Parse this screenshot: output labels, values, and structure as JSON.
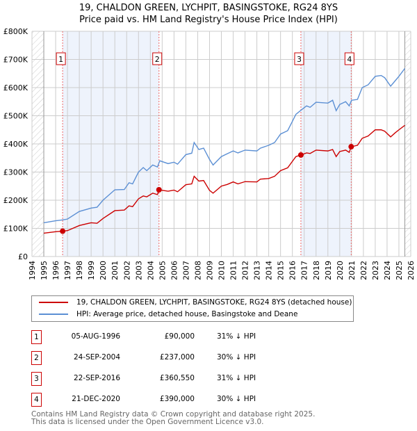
{
  "chart_data": {
    "type": "line",
    "title": "19, CHALDON GREEN, LYCHPIT, BASINGSTOKE, RG24 8YS",
    "subtitle": "Price paid vs. HM Land Registry's House Price Index (HPI)",
    "xlim": [
      1994,
      2026
    ],
    "ylim": [
      0,
      800000
    ],
    "x_ticks": [
      "1994",
      "1995",
      "1996",
      "1997",
      "1998",
      "1999",
      "2000",
      "2001",
      "2002",
      "2003",
      "2004",
      "2005",
      "2006",
      "2007",
      "2008",
      "2009",
      "2010",
      "2011",
      "2012",
      "2013",
      "2014",
      "2015",
      "2016",
      "2017",
      "2018",
      "2019",
      "2020",
      "2021",
      "2022",
      "2023",
      "2024",
      "2025",
      "2026"
    ],
    "y_ticks": [
      {
        "v": 0,
        "label": "£0"
      },
      {
        "v": 100000,
        "label": "£100K"
      },
      {
        "v": 200000,
        "label": "£200K"
      },
      {
        "v": 300000,
        "label": "£300K"
      },
      {
        "v": 400000,
        "label": "£400K"
      },
      {
        "v": 500000,
        "label": "£500K"
      },
      {
        "v": 600000,
        "label": "£600K"
      },
      {
        "v": 700000,
        "label": "£700K"
      },
      {
        "v": 800000,
        "label": "£800K"
      }
    ],
    "grid": true,
    "series": [
      {
        "name": "19, CHALDON GREEN, LYCHPIT, BASINGSTOKE, RG24 8YS (detached house)",
        "color": "#cc0000",
        "x": [
          1995,
          1996,
          1996.6,
          1997,
          1998,
          1999,
          1999.5,
          2000,
          2001,
          2001.8,
          2002.2,
          2002.5,
          2003,
          2003.4,
          2003.7,
          2004.2,
          2004.6,
          2004.73,
          2005.5,
          2006,
          2006.3,
          2007,
          2007.5,
          2007.7,
          2008.1,
          2008.5,
          2009,
          2009.3,
          2010,
          2010.5,
          2011,
          2011.4,
          2012,
          2013,
          2013.3,
          2014,
          2014.5,
          2015,
          2015.6,
          2016,
          2016.3,
          2016.72,
          2017.2,
          2017.5,
          2018,
          2019,
          2019.4,
          2019.7,
          2020,
          2020.5,
          2020.8,
          2020.97,
          2021.5,
          2021.9,
          2022.4,
          2023,
          2023.5,
          2023.8,
          2024.3,
          2024.7,
          2025,
          2025.5
        ],
        "y": [
          83000,
          88000,
          90000,
          92000,
          110000,
          120000,
          118000,
          135000,
          163000,
          165000,
          180000,
          177000,
          205000,
          215000,
          212000,
          225000,
          220000,
          237000,
          232000,
          236000,
          230000,
          255000,
          258000,
          285000,
          268000,
          270000,
          235000,
          225000,
          250000,
          256000,
          265000,
          258000,
          266000,
          265000,
          275000,
          277000,
          285000,
          305000,
          315000,
          338000,
          355000,
          360550,
          368000,
          366000,
          378000,
          375000,
          380000,
          355000,
          373000,
          378000,
          370000,
          390000,
          395000,
          420000,
          428000,
          450000,
          450000,
          445000,
          425000,
          440000,
          450000,
          466000
        ]
      },
      {
        "name": "HPI: Average price, detached house, Basingstoke and Deane",
        "color": "#5b8fd4",
        "x": [
          1995,
          1996,
          1996.6,
          1997,
          1998,
          1999,
          1999.5,
          2000,
          2001,
          2001.8,
          2002.2,
          2002.5,
          2003,
          2003.4,
          2003.7,
          2004.2,
          2004.6,
          2004.8,
          2005.5,
          2006,
          2006.3,
          2007,
          2007.5,
          2007.7,
          2008.1,
          2008.5,
          2009,
          2009.3,
          2010,
          2010.5,
          2011,
          2011.4,
          2012,
          2013,
          2013.3,
          2014,
          2014.5,
          2015,
          2015.6,
          2016,
          2016.3,
          2016.8,
          2017.2,
          2017.5,
          2018,
          2019,
          2019.4,
          2019.7,
          2020,
          2020.5,
          2020.8,
          2021,
          2021.5,
          2021.9,
          2022.4,
          2023,
          2023.5,
          2023.8,
          2024.3,
          2024.7,
          2025,
          2025.5
        ],
        "y": [
          120000,
          127000,
          130000,
          133000,
          160000,
          172000,
          175000,
          200000,
          237000,
          238000,
          262000,
          258000,
          300000,
          316000,
          305000,
          325000,
          318000,
          340000,
          330000,
          335000,
          328000,
          362000,
          367000,
          405000,
          380000,
          385000,
          345000,
          325000,
          355000,
          365000,
          375000,
          368000,
          378000,
          375000,
          385000,
          395000,
          405000,
          435000,
          447000,
          480000,
          505000,
          522000,
          535000,
          530000,
          548000,
          545000,
          555000,
          518000,
          540000,
          550000,
          535000,
          555000,
          558000,
          600000,
          610000,
          640000,
          643000,
          635000,
          605000,
          625000,
          640000,
          668000
        ]
      }
    ],
    "sales": [
      {
        "n": "1",
        "x": 1996.59,
        "price": 90000,
        "date": "05-AUG-1996",
        "price_label": "£90,000",
        "hpi": "31% ↓ HPI"
      },
      {
        "n": "2",
        "x": 2004.73,
        "price": 237000,
        "date": "24-SEP-2004",
        "price_label": "£237,000",
        "hpi": "30% ↓ HPI"
      },
      {
        "n": "3",
        "x": 2016.72,
        "price": 360550,
        "date": "22-SEP-2016",
        "price_label": "£360,550",
        "hpi": "31% ↓ HPI"
      },
      {
        "n": "4",
        "x": 2020.97,
        "price": 390000,
        "date": "21-DEC-2020",
        "price_label": "£390,000",
        "hpi": "30% ↓ HPI"
      }
    ],
    "data_start": 1995,
    "data_end": 2025.5,
    "legend": "below"
  },
  "footer": {
    "line1": "Contains HM Land Registry data © Crown copyright and database right 2025.",
    "line2": "This data is licensed under the Open Government Licence v3.0."
  }
}
